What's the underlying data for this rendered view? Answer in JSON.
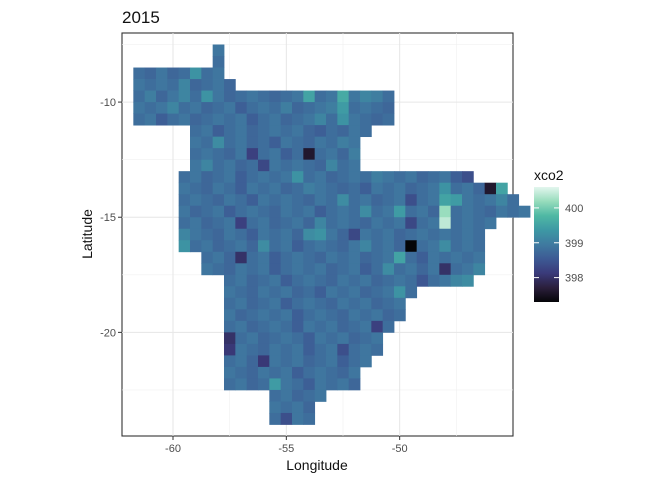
{
  "chart_data": {
    "type": "heatmap",
    "title": "2015",
    "xlabel": "Longitude",
    "ylabel": "Latitude",
    "xlim": [
      -62.25,
      -45.0
    ],
    "ylim": [
      -24.5,
      -7.0
    ],
    "x_ticks": [
      -60,
      -55,
      -50
    ],
    "y_ticks": [
      -20,
      -15,
      -10
    ],
    "x_tick_labels": [
      "-60",
      "-55",
      "-50"
    ],
    "y_tick_labels": [
      "-20",
      "-15",
      "-10"
    ],
    "grid": true,
    "legend": {
      "title": "xco2",
      "placement": "right",
      "min": 397.3,
      "max": 400.6,
      "ticks": [
        398,
        399,
        400
      ],
      "tick_labels": [
        "398",
        "399",
        "400"
      ]
    },
    "colorscale": [
      "#050508",
      "#2b1f3c",
      "#3a3a7a",
      "#3d5a94",
      "#3f7aa0",
      "#3d98a4",
      "#4fb8a4",
      "#97dcbc",
      "#e3f6ee"
    ],
    "cell_size_deg": 0.5,
    "rows": [
      {
        "lat": -7.75,
        "lon_start": -58.0,
        "values": [
          398.9
        ]
      },
      {
        "lat": -8.25,
        "lon_start": -58.0,
        "values": [
          398.8
        ]
      },
      {
        "lat": -8.75,
        "lon_start": -61.5,
        "values": [
          398.8,
          398.7,
          398.9,
          398.7,
          398.8,
          399.3,
          398.8,
          398.9
        ]
      },
      {
        "lat": -9.25,
        "lon_start": -61.5,
        "values": [
          398.9,
          398.8,
          398.9,
          398.8,
          399.1,
          398.7,
          398.8,
          398.9,
          398.7
        ]
      },
      {
        "lat": -9.75,
        "lon_start": -61.5,
        "values": [
          398.8,
          399.0,
          398.7,
          398.9,
          399.1,
          398.8,
          399.3,
          398.9,
          398.7,
          398.8,
          398.9,
          398.8,
          398.7,
          398.8,
          398.9,
          399.5,
          398.8,
          398.9,
          399.6,
          398.9,
          399.1,
          399.0,
          398.8
        ]
      },
      {
        "lat": -10.25,
        "lon_start": -61.5,
        "values": [
          398.9,
          398.8,
          398.9,
          399.1,
          398.8,
          398.9,
          398.7,
          398.8,
          398.9,
          398.6,
          398.8,
          398.9,
          398.8,
          399.0,
          398.7,
          398.8,
          398.9,
          399.0,
          399.4,
          398.8,
          398.9,
          398.8,
          398.7
        ]
      },
      {
        "lat": -10.75,
        "lon_start": -61.5,
        "values": [
          398.8,
          398.9,
          398.6,
          398.8,
          398.9,
          398.7,
          398.8,
          398.9,
          398.8,
          398.9,
          398.6,
          398.8,
          398.9,
          398.7,
          398.8,
          398.9,
          399.1,
          398.8,
          399.3,
          398.9,
          398.8,
          398.7,
          398.8
        ]
      },
      {
        "lat": -11.25,
        "lon_start": -59.0,
        "values": [
          398.8,
          398.9,
          398.6,
          398.8,
          398.9,
          398.7,
          398.8,
          398.9,
          398.8,
          398.9,
          398.7,
          398.6,
          398.8,
          398.7,
          398.9,
          398.8
        ]
      },
      {
        "lat": -11.75,
        "lon_start": -59.0,
        "values": [
          398.9,
          398.8,
          399.2,
          398.8,
          398.9,
          398.7,
          398.8,
          398.6,
          398.9,
          398.8,
          398.7,
          398.9,
          398.8,
          399.0,
          398.9
        ]
      },
      {
        "lat": -12.25,
        "lon_start": -59.0,
        "values": [
          398.8,
          398.9,
          398.8,
          398.7,
          398.9,
          398.2,
          398.8,
          398.9,
          398.6,
          398.8,
          397.6,
          398.8,
          398.9,
          398.7,
          399.0
        ]
      },
      {
        "lat": -12.75,
        "lon_start": -59.0,
        "values": [
          398.9,
          399.1,
          398.8,
          398.9,
          398.7,
          398.8,
          398.3,
          398.9,
          398.8,
          398.9,
          398.8,
          398.7,
          399.1,
          398.8,
          398.9
        ]
      },
      {
        "lat": -13.25,
        "lon_start": -59.5,
        "values": [
          398.8,
          398.9,
          398.7,
          398.8,
          398.9,
          398.6,
          398.8,
          398.9,
          398.8,
          398.9,
          399.3,
          398.8,
          398.9,
          398.7,
          398.8,
          398.9,
          398.8,
          399.0,
          398.9,
          398.8,
          398.9,
          398.7,
          398.8,
          398.9,
          398.6,
          398.4
        ]
      },
      {
        "lat": -13.75,
        "lon_start": -59.5,
        "values": [
          398.9,
          398.8,
          398.7,
          398.9,
          398.8,
          398.6,
          398.9,
          398.8,
          398.9,
          398.7,
          398.8,
          399.0,
          398.9,
          398.8,
          398.7,
          398.8,
          398.6,
          398.9,
          398.8,
          398.9,
          398.7,
          398.8,
          398.9,
          399.3,
          398.8,
          398.9,
          398.7,
          397.6,
          399.5
        ]
      },
      {
        "lat": -14.25,
        "lon_start": -59.5,
        "values": [
          398.8,
          398.9,
          398.8,
          398.7,
          398.9,
          398.8,
          398.6,
          398.9,
          398.8,
          398.9,
          398.8,
          398.7,
          398.9,
          398.8,
          399.2,
          398.8,
          398.9,
          398.7,
          398.8,
          398.9,
          398.4,
          398.8,
          398.9,
          399.5,
          399.4,
          398.9,
          398.8,
          398.9,
          399.1,
          398.8
        ]
      },
      {
        "lat": -14.75,
        "lon_start": -59.5,
        "values": [
          398.9,
          398.7,
          398.8,
          398.9,
          398.6,
          398.8,
          398.9,
          398.8,
          398.7,
          398.9,
          398.8,
          398.9,
          398.6,
          398.8,
          398.9,
          398.8,
          399.2,
          398.8,
          398.9,
          399.4,
          398.8,
          398.9,
          398.7,
          400.2,
          398.8,
          398.9,
          398.8,
          398.7,
          398.9,
          398.8,
          398.9
        ]
      },
      {
        "lat": -15.25,
        "lon_start": -59.5,
        "values": [
          398.8,
          398.9,
          398.7,
          398.8,
          398.9,
          398.2,
          398.8,
          398.9,
          398.7,
          398.8,
          398.9,
          398.7,
          399.1,
          398.8,
          398.9,
          398.8,
          398.7,
          398.9,
          398.8,
          398.9,
          398.3,
          398.8,
          398.9,
          400.4,
          398.8,
          398.9,
          398.8,
          398.9
        ]
      },
      {
        "lat": -15.75,
        "lon_start": -59.5,
        "values": [
          399.1,
          398.9,
          398.8,
          398.7,
          398.9,
          398.8,
          398.6,
          398.9,
          398.8,
          398.9,
          398.7,
          399.2,
          399.3,
          398.9,
          398.7,
          398.3,
          398.9,
          398.8,
          398.9,
          398.7,
          398.8,
          398.9,
          398.8,
          398.9,
          398.8,
          398.9,
          398.8
        ]
      },
      {
        "lat": -16.25,
        "lon_start": -59.5,
        "values": [
          399.3,
          398.8,
          398.9,
          398.7,
          398.8,
          398.9,
          398.7,
          399.2,
          398.8,
          398.9,
          398.6,
          398.8,
          398.9,
          398.8,
          398.7,
          398.9,
          399.1,
          398.8,
          398.9,
          398.7,
          397.3,
          398.8,
          398.9,
          399.2,
          398.8,
          398.9,
          398.8
        ]
      },
      {
        "lat": -16.75,
        "lon_start": -58.5,
        "values": [
          398.8,
          398.9,
          398.7,
          398.0,
          398.8,
          398.9,
          398.6,
          398.8,
          398.9,
          398.8,
          398.7,
          398.9,
          398.8,
          398.9,
          398.7,
          398.8,
          398.9,
          399.5,
          398.8,
          398.6,
          398.9,
          398.8,
          398.9,
          398.8,
          398.9
        ]
      },
      {
        "lat": -17.25,
        "lon_start": -58.5,
        "values": [
          398.9,
          398.8,
          398.7,
          398.9,
          398.8,
          398.9,
          398.6,
          398.8,
          398.9,
          398.8,
          398.9,
          398.7,
          398.8,
          398.9,
          398.6,
          398.8,
          399.2,
          398.8,
          398.9,
          398.7,
          398.9,
          398.0,
          398.8,
          398.9,
          399.1
        ]
      },
      {
        "lat": -17.75,
        "lon_start": -57.5,
        "values": [
          398.8,
          398.9,
          398.7,
          398.8,
          398.9,
          398.6,
          398.8,
          398.9,
          398.8,
          398.7,
          398.9,
          398.8,
          398.9,
          398.7,
          398.8,
          398.9,
          398.8,
          398.5,
          398.8,
          398.9,
          399.1,
          399.2
        ]
      },
      {
        "lat": -18.25,
        "lon_start": -57.5,
        "values": [
          398.9,
          398.8,
          398.7,
          398.9,
          398.8,
          398.9,
          398.7,
          398.8,
          398.6,
          398.9,
          398.8,
          398.9,
          398.7,
          398.8,
          398.9,
          399.3,
          398.8
        ]
      },
      {
        "lat": -18.75,
        "lon_start": -57.5,
        "values": [
          398.8,
          398.9,
          398.7,
          398.8,
          398.9,
          398.6,
          398.8,
          398.9,
          398.8,
          398.7,
          398.9,
          398.8,
          398.9,
          398.7,
          398.8,
          398.9
        ]
      },
      {
        "lat": -19.25,
        "lon_start": -57.5,
        "values": [
          398.9,
          398.7,
          398.8,
          398.9,
          398.8,
          398.9,
          398.6,
          398.8,
          398.9,
          398.8,
          398.7,
          398.9,
          398.8,
          398.9,
          398.7,
          398.8
        ]
      },
      {
        "lat": -19.75,
        "lon_start": -57.5,
        "values": [
          398.8,
          398.9,
          398.7,
          398.8,
          398.9,
          398.8,
          398.6,
          398.9,
          398.8,
          398.9,
          398.7,
          398.8,
          398.9,
          398.2,
          398.8
        ]
      },
      {
        "lat": -20.25,
        "lon_start": -57.5,
        "values": [
          398.0,
          398.8,
          398.9,
          398.7,
          398.8,
          398.9,
          398.8,
          398.6,
          398.9,
          398.8,
          398.9,
          398.7,
          398.8,
          398.9
        ]
      },
      {
        "lat": -20.75,
        "lon_start": -57.5,
        "values": [
          398.1,
          398.9,
          398.8,
          398.7,
          398.9,
          398.8,
          398.9,
          398.6,
          398.8,
          398.9,
          398.4,
          398.8,
          398.9,
          398.8
        ]
      },
      {
        "lat": -21.25,
        "lon_start": -57.5,
        "values": [
          398.8,
          398.9,
          398.7,
          398.1,
          398.9,
          398.8,
          398.9,
          398.7,
          398.8,
          398.9,
          398.6,
          398.8,
          398.9
        ]
      },
      {
        "lat": -21.75,
        "lon_start": -57.5,
        "values": [
          398.9,
          398.8,
          398.7,
          398.9,
          398.8,
          398.9,
          398.6,
          398.8,
          398.9,
          398.8,
          398.7,
          398.9
        ]
      },
      {
        "lat": -22.25,
        "lon_start": -57.5,
        "values": [
          398.8,
          398.9,
          398.7,
          398.8,
          399.4,
          398.9,
          398.8,
          398.6,
          398.9,
          398.8,
          398.9,
          398.7
        ]
      },
      {
        "lat": -22.75,
        "lon_start": -55.5,
        "values": [
          398.8,
          398.9,
          398.7,
          398.8,
          398.9
        ]
      },
      {
        "lat": -23.25,
        "lon_start": -55.5,
        "values": [
          398.9,
          398.8,
          398.9,
          398.7
        ]
      },
      {
        "lat": -23.75,
        "lon_start": -55.5,
        "values": [
          398.8,
          398.4,
          398.9,
          398.8
        ]
      }
    ]
  }
}
